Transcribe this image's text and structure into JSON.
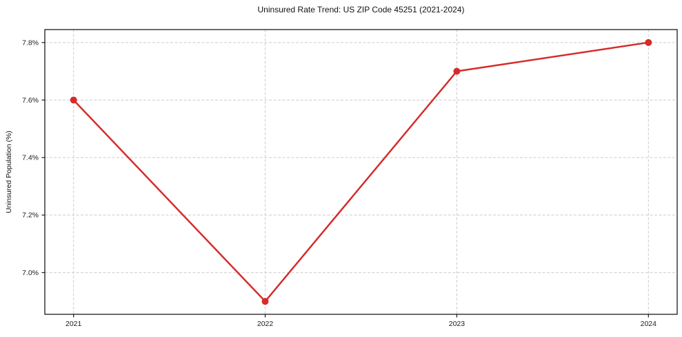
{
  "page": {
    "background_color": "#ffffff"
  },
  "chart_data": {
    "type": "line",
    "title": "Uninsured Rate Trend: US ZIP Code 45251 (2021-2024)",
    "xlabel": "",
    "ylabel": "Uninsured Population (%)",
    "x": [
      2021,
      2022,
      2023,
      2024
    ],
    "series": [
      {
        "name": "uninsured-rate",
        "values": [
          7.6,
          6.9,
          7.7,
          7.8
        ],
        "color": "#d62b2b",
        "marker": "circle",
        "line_width": 2.5,
        "marker_radius": 5
      }
    ],
    "xticks": {
      "values": [
        2021,
        2022,
        2023,
        2024
      ],
      "labels": [
        "2021",
        "2022",
        "2023",
        "2024"
      ]
    },
    "yticks": {
      "values": [
        7.0,
        7.2,
        7.4,
        7.6,
        7.8
      ],
      "labels": [
        "7.0%",
        "7.2%",
        "7.4%",
        "7.6%",
        "7.8%"
      ]
    },
    "xlim": [
      2020.85,
      2024.15
    ],
    "ylim": [
      6.855,
      7.845
    ],
    "grid": true,
    "grid_style": "dashed",
    "legend": false,
    "styles": {
      "grid_color": "#cccccc",
      "spine_color": "#1a1a1a",
      "text_color": "#1a1a1a"
    }
  }
}
